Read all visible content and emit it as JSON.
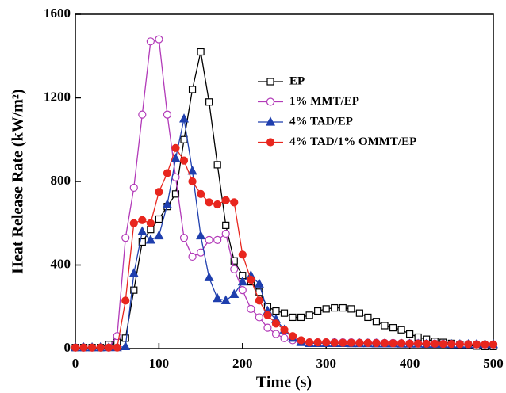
{
  "chart_data": {
    "type": "line",
    "x_label": "Time (s)",
    "y_label": "Heat Release Rate (kW/m²)",
    "xlim": [
      0,
      500
    ],
    "xticks": [
      0,
      100,
      200,
      300,
      400,
      500
    ],
    "ylim": [
      0,
      1600
    ],
    "yticks": [
      0,
      400,
      800,
      1200,
      1600
    ],
    "legend": "upper-right",
    "x": [
      0,
      10,
      20,
      30,
      40,
      50,
      60,
      70,
      80,
      90,
      100,
      110,
      120,
      130,
      140,
      150,
      160,
      170,
      180,
      190,
      200,
      210,
      220,
      230,
      240,
      250,
      260,
      270,
      280,
      290,
      300,
      310,
      320,
      330,
      340,
      350,
      360,
      370,
      380,
      390,
      400,
      410,
      420,
      430,
      440,
      450,
      460,
      470,
      480,
      490,
      500
    ],
    "series": [
      {
        "name": "EP",
        "color": "#000000",
        "marker": "square",
        "filled": false,
        "values": [
          5,
          5,
          5,
          5,
          20,
          30,
          50,
          280,
          510,
          570,
          620,
          680,
          740,
          1000,
          1240,
          1420,
          1180,
          880,
          590,
          420,
          350,
          320,
          270,
          200,
          180,
          170,
          150,
          150,
          160,
          180,
          190,
          195,
          195,
          190,
          170,
          150,
          130,
          110,
          100,
          90,
          70,
          55,
          45,
          35,
          30,
          25,
          20,
          15,
          12,
          10,
          10
        ]
      },
      {
        "name": "1% MMT/EP",
        "color": "#b23ab8",
        "marker": "circle",
        "filled": false,
        "values": [
          5,
          5,
          5,
          5,
          5,
          60,
          530,
          770,
          1120,
          1470,
          1480,
          1120,
          820,
          530,
          440,
          460,
          520,
          520,
          550,
          380,
          280,
          190,
          150,
          100,
          70,
          50,
          40,
          35,
          30,
          30,
          30,
          30,
          30,
          30,
          28,
          28,
          28,
          27,
          27,
          26,
          25,
          25,
          24,
          24,
          23,
          22,
          22,
          21,
          21,
          20,
          20
        ]
      },
      {
        "name": "4% TAD/EP",
        "color": "#1f3fae",
        "marker": "triangle",
        "filled": true,
        "values": [
          5,
          5,
          5,
          5,
          5,
          5,
          10,
          360,
          560,
          520,
          540,
          690,
          910,
          1100,
          850,
          540,
          340,
          240,
          230,
          260,
          320,
          350,
          310,
          180,
          140,
          90,
          50,
          30,
          25,
          25,
          25,
          25,
          25,
          24,
          24,
          24,
          23,
          23,
          23,
          22,
          22,
          22,
          21,
          21,
          21,
          20,
          20,
          20,
          20,
          20,
          20
        ]
      },
      {
        "name": "4% TAD/1% OMMT/EP",
        "color": "#e8261e",
        "marker": "circle",
        "filled": true,
        "values": [
          5,
          5,
          5,
          5,
          5,
          5,
          230,
          600,
          615,
          600,
          750,
          840,
          960,
          900,
          800,
          740,
          700,
          690,
          710,
          700,
          450,
          330,
          230,
          160,
          120,
          90,
          60,
          40,
          30,
          30,
          30,
          28,
          28,
          28,
          27,
          27,
          26,
          26,
          25,
          25,
          24,
          24,
          23,
          23,
          22,
          22,
          21,
          21,
          20,
          20,
          20
        ]
      }
    ]
  }
}
